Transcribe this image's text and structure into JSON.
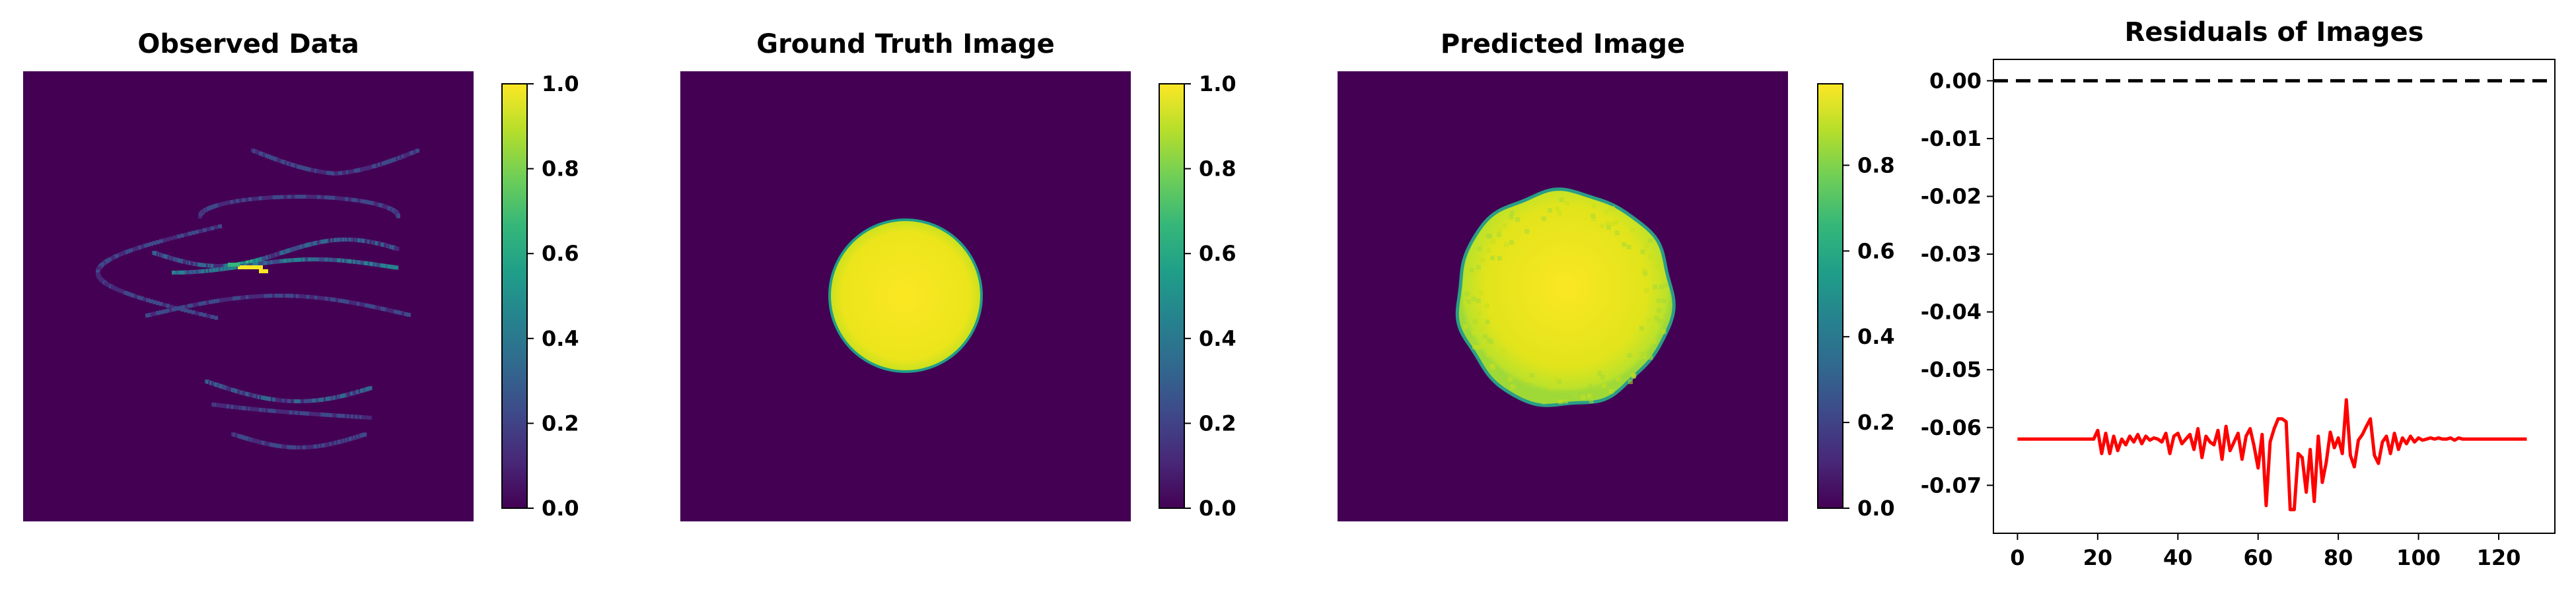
{
  "colors": {
    "viridis": [
      "#440154",
      "#482878",
      "#3e4989",
      "#31688e",
      "#26828e",
      "#1f9e89",
      "#35b779",
      "#6ece58",
      "#b5de2b",
      "#fde725"
    ],
    "background_purple": "#440154",
    "disk_yellow": "#f2e51d",
    "residual_line": "#ff0000",
    "zero_line": "#000000"
  },
  "panels": [
    {
      "title": "Observed Data",
      "type": "heatmap",
      "content": "spiral sampling pattern",
      "colorbar": {
        "min": 0.0,
        "max": 1.0,
        "ticks": [
          "0.0",
          "0.2",
          "0.4",
          "0.6",
          "0.8",
          "1.0"
        ],
        "values": [
          0,
          0.2,
          0.4,
          0.6,
          0.8,
          1.0
        ]
      }
    },
    {
      "title": "Ground Truth Image",
      "type": "heatmap",
      "content": "uniform circular disk",
      "colorbar": {
        "min": 0.0,
        "max": 1.0,
        "ticks": [
          "0.0",
          "0.2",
          "0.4",
          "0.6",
          "0.8",
          "1.0"
        ],
        "values": [
          0,
          0.2,
          0.4,
          0.6,
          0.8,
          1.0
        ]
      }
    },
    {
      "title": "Predicted Image",
      "type": "heatmap",
      "content": "noisy circular disk",
      "colorbar": {
        "min": 0.0,
        "max": 0.99,
        "ticks": [
          "0.0",
          "0.2",
          "0.4",
          "0.6",
          "0.8"
        ],
        "values": [
          0,
          0.2,
          0.4,
          0.6,
          0.8
        ]
      }
    }
  ],
  "chart_data": {
    "type": "line",
    "title": "Residuals of Images",
    "xlabel": "",
    "ylabel": "",
    "xlim": [
      -6,
      134
    ],
    "ylim": [
      -0.0783,
      0.0037
    ],
    "xticks": [
      0,
      20,
      40,
      60,
      80,
      100,
      120
    ],
    "yticks": [
      0.0,
      -0.01,
      -0.02,
      -0.03,
      -0.04,
      -0.05,
      -0.06,
      -0.07
    ],
    "ytick_labels": [
      "0.00",
      "-0.01",
      "-0.02",
      "-0.03",
      "-0.04",
      "-0.05",
      "-0.06",
      "-0.07"
    ],
    "reference_line": {
      "y": 0.0,
      "style": "dashed",
      "color": "#000000"
    },
    "series": [
      {
        "color": "#ff0000",
        "x": [
          0,
          1,
          2,
          3,
          4,
          5,
          6,
          7,
          8,
          9,
          10,
          11,
          12,
          13,
          14,
          15,
          16,
          17,
          18,
          19,
          20,
          21,
          22,
          23,
          24,
          25,
          26,
          27,
          28,
          29,
          30,
          31,
          32,
          33,
          34,
          35,
          36,
          37,
          38,
          39,
          40,
          41,
          42,
          43,
          44,
          45,
          46,
          47,
          48,
          49,
          50,
          51,
          52,
          53,
          54,
          55,
          56,
          57,
          58,
          59,
          60,
          61,
          62,
          63,
          64,
          65,
          66,
          67,
          68,
          69,
          70,
          71,
          72,
          73,
          74,
          75,
          76,
          77,
          78,
          79,
          80,
          81,
          82,
          83,
          84,
          85,
          86,
          87,
          88,
          89,
          90,
          91,
          92,
          93,
          94,
          95,
          96,
          97,
          98,
          99,
          100,
          101,
          102,
          103,
          104,
          105,
          106,
          107,
          108,
          109,
          110,
          111,
          112,
          113,
          114,
          115,
          116,
          117,
          118,
          119,
          120,
          121,
          122,
          123,
          124,
          125,
          126,
          127
        ],
        "y": [
          -0.062,
          -0.062,
          -0.062,
          -0.062,
          -0.062,
          -0.062,
          -0.062,
          -0.062,
          -0.062,
          -0.062,
          -0.062,
          -0.062,
          -0.062,
          -0.062,
          -0.062,
          -0.062,
          -0.062,
          -0.062,
          -0.062,
          -0.062,
          -0.0605,
          -0.0645,
          -0.061,
          -0.0645,
          -0.0615,
          -0.064,
          -0.062,
          -0.063,
          -0.0615,
          -0.0625,
          -0.0612,
          -0.0628,
          -0.0615,
          -0.0622,
          -0.0618,
          -0.062,
          -0.0625,
          -0.061,
          -0.0645,
          -0.0615,
          -0.061,
          -0.0628,
          -0.062,
          -0.0612,
          -0.0638,
          -0.0602,
          -0.0652,
          -0.0615,
          -0.0625,
          -0.063,
          -0.0605,
          -0.0655,
          -0.0598,
          -0.064,
          -0.0625,
          -0.061,
          -0.0655,
          -0.0615,
          -0.0602,
          -0.0632,
          -0.067,
          -0.0612,
          -0.0735,
          -0.0625,
          -0.0602,
          -0.0585,
          -0.0585,
          -0.059,
          -0.0742,
          -0.0742,
          -0.0645,
          -0.0652,
          -0.0712,
          -0.0638,
          -0.0728,
          -0.0615,
          -0.0695,
          -0.066,
          -0.0608,
          -0.0635,
          -0.0618,
          -0.0645,
          -0.0552,
          -0.0648,
          -0.0668,
          -0.0622,
          -0.0612,
          -0.0598,
          -0.0585,
          -0.0648,
          -0.0662,
          -0.0625,
          -0.0615,
          -0.0645,
          -0.061,
          -0.0638,
          -0.0618,
          -0.0628,
          -0.0615,
          -0.0625,
          -0.0618,
          -0.0622,
          -0.062,
          -0.0618,
          -0.062,
          -0.0618,
          -0.062,
          -0.062,
          -0.0618,
          -0.0622,
          -0.0618,
          -0.062,
          -0.062,
          -0.062,
          -0.062,
          -0.062,
          -0.062,
          -0.062,
          -0.062,
          -0.062,
          -0.062,
          -0.062,
          -0.062,
          -0.062,
          -0.062,
          -0.062,
          -0.062,
          -0.062
        ]
      }
    ]
  }
}
